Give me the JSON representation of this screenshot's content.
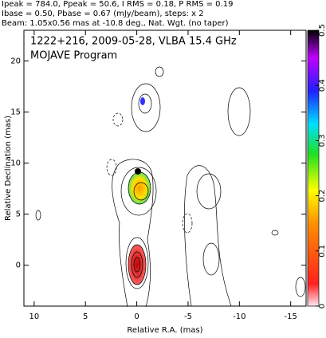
{
  "chart_data": {
    "type": "contour",
    "header": [
      "Ipeak = 784.0, Ppeak = 50.6, I RMS = 0.18, P RMS = 0.19",
      "Ibase = 0.50, Pbase = 0.67 (mJy/beam), steps: x 2",
      "Beam: 1.05x0.56 mas at -10.8 deg., Nat. Wgt. (no taper)"
    ],
    "title": "1222+216, 2009-05-28, VLBA 15.4 GHz",
    "subtitle": "MOJAVE Program",
    "xlabel": "Relative R.A. (mas)",
    "ylabel": "Relative Declination (mas)",
    "xlim": [
      11,
      -16.5
    ],
    "xticks": [
      10,
      5,
      0,
      -5,
      -10,
      -15
    ],
    "ylim": [
      -4,
      23
    ],
    "yticks": [
      0,
      5,
      10,
      15,
      20
    ],
    "colorbar_lim": [
      0,
      0.5
    ],
    "colorbar_ticks": [
      0,
      0.1,
      0.2,
      0.3,
      0.4,
      0.5
    ]
  }
}
